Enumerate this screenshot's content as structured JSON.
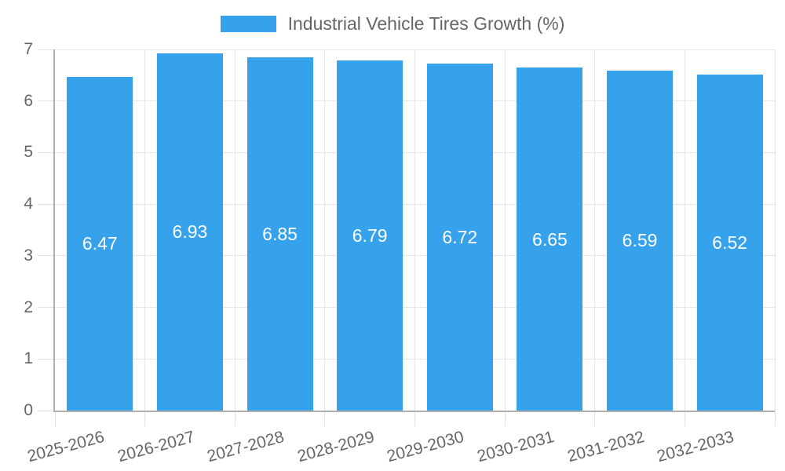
{
  "colors": {
    "bar": "#36A2EB",
    "grid": "#E6E6E6",
    "tick": "#E0E0E0",
    "axis": "#B0B0B0",
    "text": "#666666",
    "bar_label": "#FFFFFF"
  },
  "legend": {
    "label": "Industrial Vehicle Tires Growth (%)"
  },
  "chart_data": {
    "type": "bar",
    "title": "Industrial Vehicle Tires Growth (%)",
    "categories": [
      "2025-2026",
      "2026-2027",
      "2027-2028",
      "2028-2029",
      "2029-2030",
      "2030-2031",
      "2031-2032",
      "2032-2033"
    ],
    "values": [
      6.47,
      6.93,
      6.85,
      6.79,
      6.72,
      6.65,
      6.59,
      6.52
    ],
    "bar_labels": [
      "6.47",
      "6.93",
      "6.85",
      "6.79",
      "6.72",
      "6.65",
      "6.59",
      "6.52"
    ],
    "xlabel": "",
    "ylabel": "",
    "ylim": [
      0,
      7
    ],
    "yticks": [
      0,
      1,
      2,
      3,
      4,
      5,
      6,
      7
    ],
    "grid": true,
    "legend_position": "top",
    "x_tick_rotation_deg": -15
  }
}
